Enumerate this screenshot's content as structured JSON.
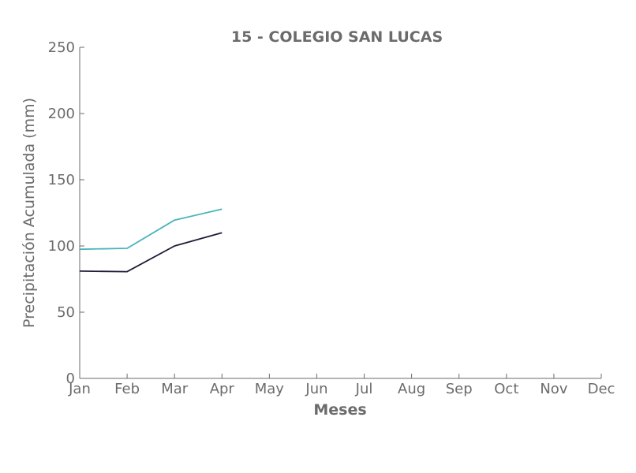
{
  "chart_data": {
    "type": "line",
    "title": "15 - COLEGIO SAN LUCAS",
    "xlabel": "Meses",
    "ylabel": "Precipitación Acumulada (mm)",
    "categories": [
      "Jan",
      "Feb",
      "Mar",
      "Apr",
      "May",
      "Jun",
      "Jul",
      "Aug",
      "Sep",
      "Oct",
      "Nov",
      "Dec"
    ],
    "yticks": [
      0,
      50,
      100,
      150,
      200,
      250
    ],
    "ylim": [
      0,
      250
    ],
    "grid": false,
    "series": [
      {
        "color": "#4ab3bc",
        "values": [
          97.5,
          98.2,
          119.5,
          127.8,
          null,
          null,
          null,
          null,
          null,
          null,
          null,
          null
        ]
      },
      {
        "color": "#1c1c3a",
        "values": [
          81.0,
          80.6,
          100.0,
          110.0,
          null,
          null,
          null,
          null,
          null,
          null,
          null,
          null
        ]
      }
    ]
  }
}
